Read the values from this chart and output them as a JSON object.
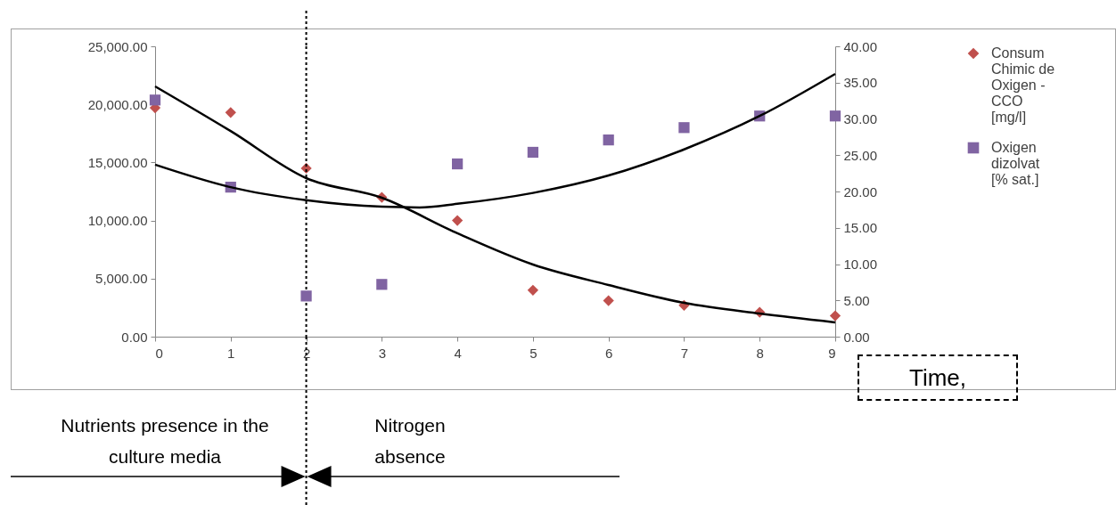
{
  "chart_data": {
    "type": "scatter",
    "x": [
      0,
      1,
      2,
      3,
      4,
      5,
      6,
      7,
      8,
      9
    ],
    "series": [
      {
        "name": "Consum Chimic de Oxigen - CCO [mg/l]",
        "color": "#c0504d",
        "marker": "diamond",
        "values": [
          19700,
          19300,
          14500,
          12000,
          10000,
          4000,
          3100,
          2700,
          2100,
          1800
        ]
      },
      {
        "name": "Oxigen dizolvat [% sat.]",
        "color": "#8064a2",
        "marker": "square",
        "axis": "y2",
        "values": [
          32.6,
          20.6,
          5.6,
          7.2,
          23.8,
          25.4,
          27.1,
          28.8,
          30.4,
          30.4
        ]
      },
      {
        "type": "line",
        "color": "#000000",
        "x": [
          0,
          1,
          2,
          3,
          4,
          5,
          6,
          7,
          8,
          9
        ],
        "values": [
          21550,
          17700,
          13650,
          11960,
          8900,
          6210,
          4450,
          2910,
          1990,
          1230
        ]
      },
      {
        "type": "line",
        "color": "#000000",
        "axis": "y2",
        "x": [
          0,
          1,
          2,
          3,
          3.5,
          4,
          5,
          6,
          7,
          8,
          9
        ],
        "values": [
          23.7,
          20.6,
          18.8,
          17.9,
          17.8,
          18.3,
          19.8,
          22.2,
          25.8,
          30.4,
          36.2
        ]
      }
    ],
    "xlim": [
      0,
      9
    ],
    "xticks": [
      0,
      1,
      2,
      3,
      4,
      5,
      6,
      7,
      8,
      9
    ],
    "ylim": [
      0,
      25000
    ],
    "yticks": [
      {
        "value": 0,
        "label": "0.00"
      },
      {
        "value": 5000,
        "label": "5,000.00"
      },
      {
        "value": 10000,
        "label": "10,000.00"
      },
      {
        "value": 15000,
        "label": "15,000.00"
      },
      {
        "value": 20000,
        "label": "20,000.00"
      },
      {
        "value": 25000,
        "label": "25,000.00"
      }
    ],
    "y2lim": [
      0,
      40
    ],
    "y2ticks": [
      {
        "value": 0,
        "label": "0.00"
      },
      {
        "value": 5,
        "label": "5.00"
      },
      {
        "value": 10,
        "label": "10.00"
      },
      {
        "value": 15,
        "label": "15.00"
      },
      {
        "value": 20,
        "label": "20.00"
      },
      {
        "value": 25,
        "label": "25.00"
      },
      {
        "value": 30,
        "label": "30.00"
      },
      {
        "value": 35,
        "label": "35.00"
      },
      {
        "value": 40,
        "label": "40.00"
      }
    ],
    "ref_lines": [
      {
        "axis": "x",
        "value": 2,
        "line_style": "dotted",
        "color": "#000000"
      }
    ],
    "annotations": [
      "Nutrients presence in the culture media",
      "Nitrogen absence",
      "Time,"
    ],
    "legend": "right",
    "grid": false
  }
}
